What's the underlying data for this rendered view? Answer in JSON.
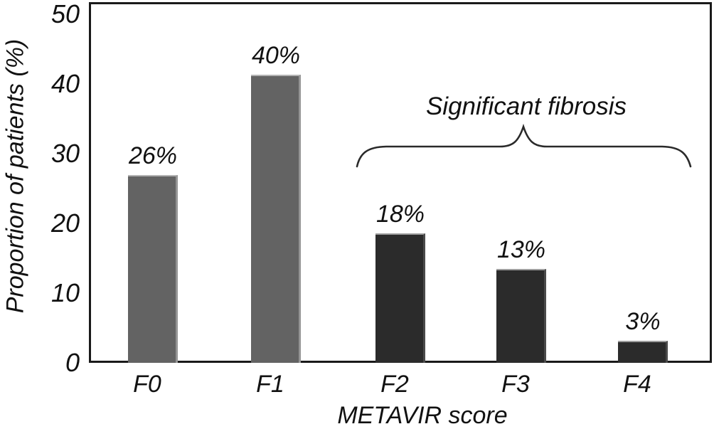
{
  "chart_data": {
    "type": "bar",
    "title": "",
    "categories": [
      "F0",
      "F1",
      "F2",
      "F3",
      "F4"
    ],
    "values": [
      26,
      40,
      18,
      13,
      3
    ],
    "bar_value_labels": [
      "26%",
      "40%",
      "18%",
      "13%",
      "3%"
    ],
    "rendered_values_estimate": [
      26.9,
      41.3,
      18.6,
      13.5,
      3.2
    ],
    "bar_colors": [
      "#636363",
      "#636363",
      "#2b2b2b",
      "#2b2b2b",
      "#2b2b2b"
    ],
    "xlabel": "METAVIR score",
    "ylabel": "Proportion of patients (%)",
    "ylim": [
      0,
      50
    ],
    "yticks": [
      0,
      10,
      20,
      30,
      40,
      50
    ],
    "grid": false,
    "legend": "none",
    "annotation": {
      "text": "Significant fibrosis",
      "spans_categories": [
        "F2",
        "F3",
        "F4"
      ]
    },
    "colors": {
      "axis": "#1a1a1a",
      "text": "#111111",
      "bar_light": "#636363",
      "bar_dark": "#2b2b2b",
      "background": "#ffffff"
    }
  }
}
